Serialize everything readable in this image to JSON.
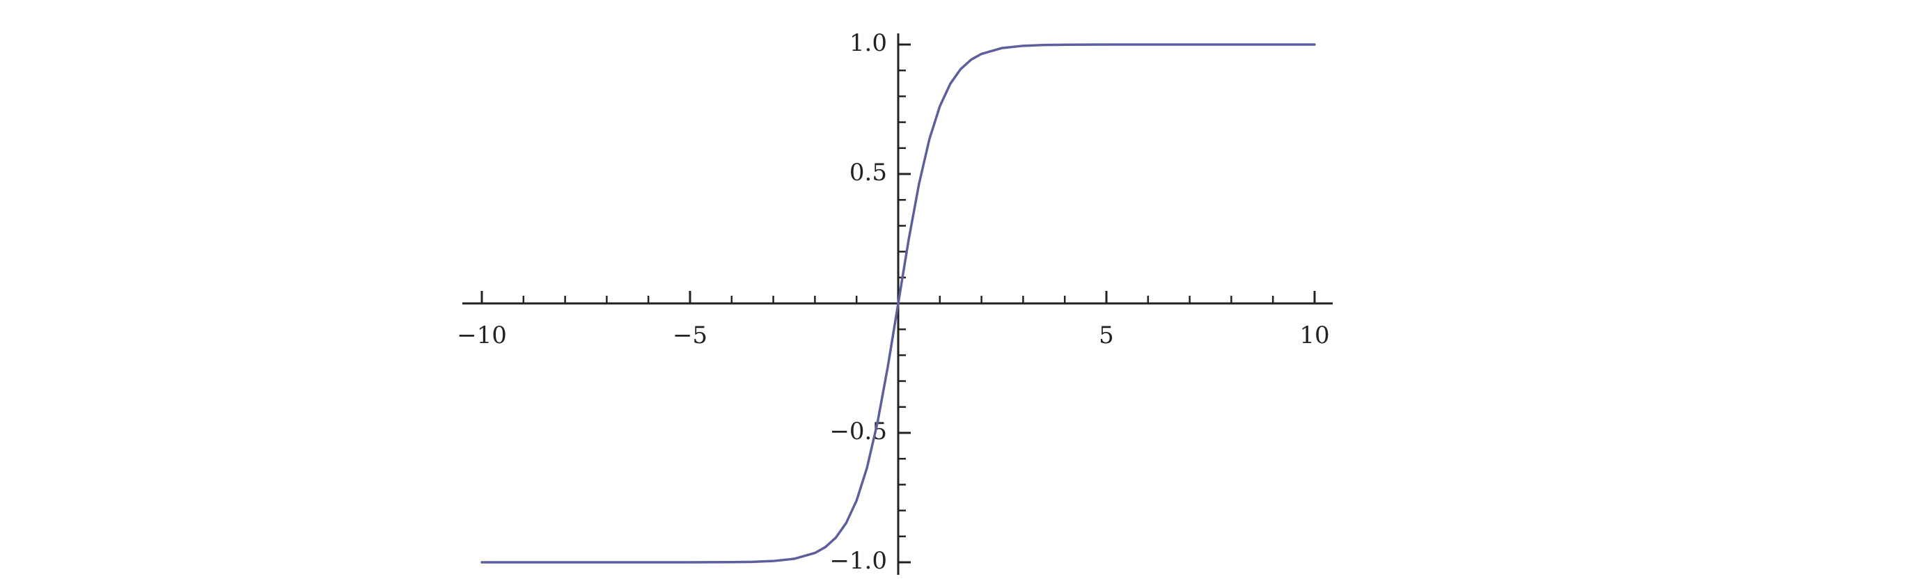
{
  "chart_data": {
    "type": "line",
    "title": "",
    "xlabel": "",
    "ylabel": "",
    "xlim": [
      -10,
      10
    ],
    "ylim": [
      -1,
      1
    ],
    "grid": false,
    "legend": "none",
    "x_major_ticks": [
      -10,
      -5,
      5,
      10
    ],
    "x_minor_ticks": [
      -9,
      -8,
      -7,
      -6,
      -4,
      -3,
      -2,
      -1,
      1,
      2,
      3,
      4,
      6,
      7,
      8,
      9
    ],
    "y_major_ticks": [
      -1.0,
      -0.5,
      0.5,
      1.0
    ],
    "y_minor_ticks": [
      -0.9,
      -0.8,
      -0.7,
      -0.6,
      -0.4,
      -0.3,
      -0.2,
      -0.1,
      0.1,
      0.2,
      0.3,
      0.4,
      0.6,
      0.7,
      0.8,
      0.9
    ],
    "x_tick_labels": [
      "−10",
      "−5",
      "5",
      "10"
    ],
    "y_tick_labels": [
      "−1.0",
      "−0.5",
      "0.5",
      "1.0"
    ],
    "series": [
      {
        "x": [
          -10,
          -9,
          -8,
          -7,
          -6,
          -5,
          -4,
          -3.5,
          -3,
          -2.5,
          -2,
          -1.75,
          -1.5,
          -1.25,
          -1,
          -0.75,
          -0.5,
          -0.25,
          0,
          0.25,
          0.5,
          0.75,
          1,
          1.25,
          1.5,
          1.75,
          2,
          2.5,
          3,
          3.5,
          4,
          5,
          6,
          7,
          8,
          9,
          10
        ],
        "y": [
          -1.0,
          -1.0,
          -1.0,
          -1.0,
          -1.0,
          -0.9999,
          -0.9993,
          -0.9982,
          -0.9951,
          -0.9866,
          -0.964,
          -0.9414,
          -0.9051,
          -0.8483,
          -0.7616,
          -0.6351,
          -0.4621,
          -0.2449,
          0.0,
          0.2449,
          0.4621,
          0.6351,
          0.7616,
          0.8483,
          0.9051,
          0.9414,
          0.964,
          0.9866,
          0.9951,
          0.9982,
          0.9993,
          0.9999,
          1.0,
          1.0,
          1.0,
          1.0,
          1.0
        ]
      }
    ],
    "colors": {
      "curve": "#5d5f9c",
      "axis": "#222222",
      "background": "#ffffff"
    }
  }
}
